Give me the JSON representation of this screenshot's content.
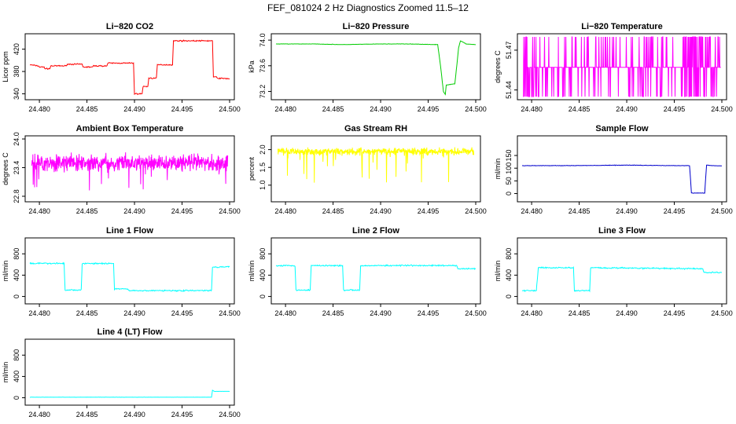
{
  "figure": {
    "title": "FEF_081024  2 Hz Diagnostics Zoomed 11.5–12"
  },
  "chart_data": [
    {
      "type": "line",
      "title": "Li−820 CO2",
      "xlabel": "",
      "ylabel": "Licor ppm",
      "xlim": [
        24.479,
        24.5
      ],
      "ylim": [
        335,
        442
      ],
      "xticks": [
        "24.480",
        "24.485",
        "24.490",
        "24.495",
        "24.500"
      ],
      "yticks": [
        340,
        380,
        420
      ],
      "ytick_labels": [
        "340",
        "380",
        "420"
      ],
      "grid": false,
      "series": [
        {
          "color": "#ff0000",
          "noise": 1.5,
          "x": [
            24.479,
            24.4799,
            24.48,
            24.4805,
            24.4806,
            24.4811,
            24.4812,
            24.4828,
            24.4829,
            24.4845,
            24.4846,
            24.4856,
            24.4857,
            24.4871,
            24.4872,
            24.4899,
            24.49,
            24.4908,
            24.4909,
            24.4914,
            24.4915,
            24.4923,
            24.4924,
            24.494,
            24.4941,
            24.4982,
            24.4983,
            24.4986,
            24.4987,
            24.5
          ],
          "y": [
            392,
            390,
            388,
            388,
            385,
            385,
            390,
            390,
            393,
            393,
            388,
            388,
            390,
            390,
            395,
            395,
            340,
            340,
            353,
            353,
            368,
            368,
            392,
            392,
            435,
            435,
            370,
            370,
            368,
            367
          ]
        }
      ]
    },
    {
      "type": "line",
      "title": "Li−820 Pressure",
      "xlabel": "",
      "ylabel": "kPa",
      "xlim": [
        24.479,
        24.5
      ],
      "ylim": [
        73.12,
        74.05
      ],
      "xticks": [
        "24.480",
        "24.485",
        "24.490",
        "24.495",
        "24.500"
      ],
      "yticks": [
        73.2,
        73.6,
        74.0
      ],
      "ytick_labels": [
        "73.2",
        "73.6",
        "74.0"
      ],
      "grid": false,
      "series": [
        {
          "color": "#00cc00",
          "noise": 0.004,
          "x": [
            24.479,
            24.483,
            24.486,
            24.49,
            24.493,
            24.496,
            24.4963,
            24.4966,
            24.4968,
            24.4969,
            24.4978,
            24.4979,
            24.4982,
            24.4984,
            24.499,
            24.5
          ],
          "y": [
            73.94,
            73.94,
            73.93,
            73.94,
            73.94,
            73.93,
            73.6,
            73.2,
            73.15,
            73.3,
            73.32,
            73.45,
            73.88,
            73.99,
            73.94,
            73.93
          ]
        }
      ]
    },
    {
      "type": "line",
      "title": "Li−820 Temperature",
      "xlabel": "",
      "ylabel": "degrees C",
      "xlim": [
        24.479,
        24.5
      ],
      "ylim": [
        51.435,
        51.48
      ],
      "xticks": [
        "24.480",
        "24.485",
        "24.490",
        "24.495",
        "24.500"
      ],
      "yticks": [
        51.44,
        51.47
      ],
      "ytick_labels": [
        "51.44",
        "51.47"
      ],
      "grid": false,
      "series": [
        {
          "color": "#ff00ff",
          "pattern": "digital",
          "base": 51.457,
          "high": 51.48,
          "low": 51.435,
          "x": [],
          "y": []
        }
      ]
    },
    {
      "type": "line",
      "title": "Ambient Box Temperature",
      "xlabel": "",
      "ylabel": "degrees C",
      "xlim": [
        24.479,
        24.5
      ],
      "ylim": [
        22.75,
        24.0
      ],
      "xticks": [
        "24.480",
        "24.485",
        "24.490",
        "24.495",
        "24.500"
      ],
      "yticks": [
        22.8,
        23.4,
        24.0
      ],
      "ytick_labels": [
        "22.8",
        "23.4",
        "24.0"
      ],
      "grid": false,
      "series": [
        {
          "color": "#ff00ff",
          "pattern": "noise",
          "base": 23.5,
          "amp": 0.25,
          "spike": 0.6,
          "x": [],
          "y": []
        }
      ]
    },
    {
      "type": "line",
      "title": "Gas Stream RH",
      "xlabel": "",
      "ylabel": "percent",
      "xlim": [
        24.479,
        24.5
      ],
      "ylim": [
        0.62,
        2.3
      ],
      "xticks": [
        "24.480",
        "24.485",
        "24.490",
        "24.495",
        "24.500"
      ],
      "yticks": [
        1.0,
        1.5,
        2.0
      ],
      "ytick_labels": [
        "1.0",
        "1.5",
        "2.0"
      ],
      "grid": false,
      "series": [
        {
          "color": "#ffff00",
          "pattern": "noise",
          "base": 1.95,
          "amp": 0.15,
          "spike": 0.9,
          "x": [],
          "y": []
        }
      ]
    },
    {
      "type": "line",
      "title": "Sample Flow",
      "xlabel": "",
      "ylabel": "ml/min",
      "xlim": [
        24.479,
        24.5
      ],
      "ylim": [
        -20,
        215
      ],
      "xticks": [
        "24.480",
        "24.485",
        "24.490",
        "24.495",
        "24.500"
      ],
      "yticks": [
        0,
        50,
        100,
        150
      ],
      "ytick_labels": [
        "0",
        "50",
        "100",
        "150"
      ],
      "grid": false,
      "series": [
        {
          "color": "#0000cc",
          "noise": 1.2,
          "x": [
            24.479,
            24.484,
            24.49,
            24.495,
            24.4966,
            24.4967,
            24.4968,
            24.4982,
            24.4983,
            24.4984,
            24.499,
            24.5
          ],
          "y": [
            110,
            110,
            112,
            110,
            110,
            60,
            2,
            2,
            60,
            112,
            110,
            109
          ]
        }
      ]
    },
    {
      "type": "line",
      "title": "Line 1 Flow",
      "xlabel": "",
      "ylabel": "ml/min",
      "xlim": [
        24.479,
        24.5
      ],
      "ylim": [
        -80,
        1040
      ],
      "xticks": [
        "24.480",
        "24.485",
        "24.490",
        "24.495",
        "24.500"
      ],
      "yticks": [
        0,
        400,
        800
      ],
      "ytick_labels": [
        "0",
        "400",
        "800"
      ],
      "grid": false,
      "series": [
        {
          "color": "#00ffff",
          "noise": 18,
          "x": [
            24.479,
            24.4826,
            24.4827,
            24.4844,
            24.4845,
            24.4878,
            24.4879,
            24.4893,
            24.4894,
            24.4981,
            24.4982,
            24.5
          ],
          "y": [
            620,
            620,
            120,
            120,
            620,
            620,
            140,
            140,
            110,
            110,
            550,
            560
          ]
        }
      ]
    },
    {
      "type": "line",
      "title": "Line 2 Flow",
      "xlabel": "",
      "ylabel": "ml/min",
      "xlim": [
        24.479,
        24.5
      ],
      "ylim": [
        -80,
        1040
      ],
      "xticks": [
        "24.480",
        "24.485",
        "24.490",
        "24.495",
        "24.500"
      ],
      "yticks": [
        0,
        400,
        800
      ],
      "ytick_labels": [
        "0",
        "400",
        "800"
      ],
      "grid": false,
      "series": [
        {
          "color": "#00ffff",
          "noise": 18,
          "x": [
            24.479,
            24.481,
            24.4811,
            24.4826,
            24.4827,
            24.486,
            24.4861,
            24.4878,
            24.4879,
            24.498,
            24.4981,
            24.5
          ],
          "y": [
            580,
            580,
            120,
            120,
            580,
            580,
            120,
            120,
            580,
            580,
            520,
            520
          ]
        }
      ]
    },
    {
      "type": "line",
      "title": "Line 3 Flow",
      "xlabel": "",
      "ylabel": "ml/min",
      "xlim": [
        24.479,
        24.5
      ],
      "ylim": [
        -80,
        1040
      ],
      "xticks": [
        "24.480",
        "24.485",
        "24.490",
        "24.495",
        "24.500"
      ],
      "yticks": [
        0,
        400,
        800
      ],
      "ytick_labels": [
        "0",
        "400",
        "800"
      ],
      "grid": false,
      "series": [
        {
          "color": "#00ffff",
          "noise": 18,
          "x": [
            24.479,
            24.4805,
            24.4807,
            24.4808,
            24.4844,
            24.4845,
            24.4861,
            24.4862,
            24.498,
            24.4981,
            24.5
          ],
          "y": [
            110,
            110,
            540,
            540,
            540,
            110,
            110,
            540,
            520,
            450,
            450
          ]
        }
      ]
    },
    {
      "type": "line",
      "title": "Line 4 (LT) Flow",
      "xlabel": "",
      "ylabel": "ml/min",
      "xlim": [
        24.479,
        24.5
      ],
      "ylim": [
        -80,
        1040
      ],
      "xticks": [
        "24.480",
        "24.485",
        "24.490",
        "24.495",
        "24.500"
      ],
      "yticks": [
        0,
        400,
        800
      ],
      "ytick_labels": [
        "0",
        "400",
        "800"
      ],
      "grid": false,
      "series": [
        {
          "color": "#00ffff",
          "noise": 2,
          "x": [
            24.479,
            24.4981,
            24.4982,
            24.4984,
            24.5
          ],
          "y": [
            10,
            10,
            140,
            120,
            120
          ]
        }
      ]
    }
  ]
}
